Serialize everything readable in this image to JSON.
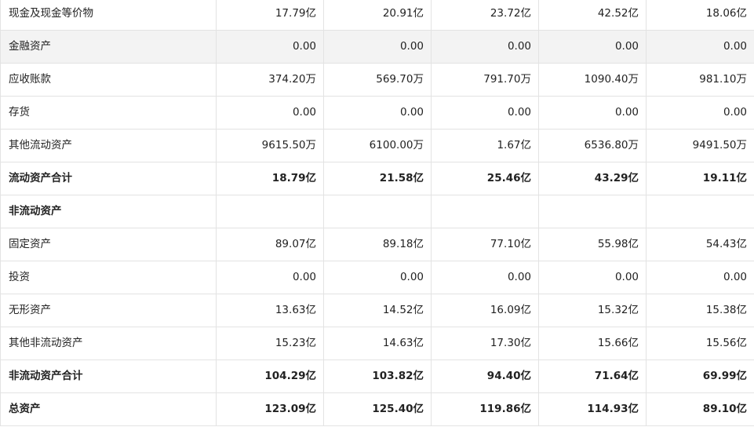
{
  "table": {
    "rows": [
      {
        "label": "现金及现金等价物",
        "values": [
          "17.79亿",
          "20.91亿",
          "23.72亿",
          "42.52亿",
          "18.06亿"
        ],
        "bold": false,
        "shaded": false
      },
      {
        "label": "金融资产",
        "values": [
          "0.00",
          "0.00",
          "0.00",
          "0.00",
          "0.00"
        ],
        "bold": false,
        "shaded": true
      },
      {
        "label": "应收账款",
        "values": [
          "374.20万",
          "569.70万",
          "791.70万",
          "1090.40万",
          "981.10万"
        ],
        "bold": false,
        "shaded": false
      },
      {
        "label": "存货",
        "values": [
          "0.00",
          "0.00",
          "0.00",
          "0.00",
          "0.00"
        ],
        "bold": false,
        "shaded": false
      },
      {
        "label": "其他流动资产",
        "values": [
          "9615.50万",
          "6100.00万",
          "1.67亿",
          "6536.80万",
          "9491.50万"
        ],
        "bold": false,
        "shaded": false
      },
      {
        "label": "流动资产合计",
        "values": [
          "18.79亿",
          "21.58亿",
          "25.46亿",
          "43.29亿",
          "19.11亿"
        ],
        "bold": true,
        "shaded": false
      },
      {
        "label": "非流动资产",
        "values": [
          "",
          "",
          "",
          "",
          ""
        ],
        "bold": true,
        "shaded": false
      },
      {
        "label": "固定资产",
        "values": [
          "89.07亿",
          "89.18亿",
          "77.10亿",
          "55.98亿",
          "54.43亿"
        ],
        "bold": false,
        "shaded": false
      },
      {
        "label": "投资",
        "values": [
          "0.00",
          "0.00",
          "0.00",
          "0.00",
          "0.00"
        ],
        "bold": false,
        "shaded": false
      },
      {
        "label": "无形资产",
        "values": [
          "13.63亿",
          "14.52亿",
          "16.09亿",
          "15.32亿",
          "15.38亿"
        ],
        "bold": false,
        "shaded": false
      },
      {
        "label": "其他非流动资产",
        "values": [
          "15.23亿",
          "14.63亿",
          "17.30亿",
          "15.66亿",
          "15.56亿"
        ],
        "bold": false,
        "shaded": false
      },
      {
        "label": "非流动资产合计",
        "values": [
          "104.29亿",
          "103.82亿",
          "94.40亿",
          "71.64亿",
          "69.99亿"
        ],
        "bold": true,
        "shaded": false
      },
      {
        "label": "总资产",
        "values": [
          "123.09亿",
          "125.40亿",
          "119.86亿",
          "114.93亿",
          "89.10亿"
        ],
        "bold": true,
        "shaded": false
      }
    ]
  }
}
